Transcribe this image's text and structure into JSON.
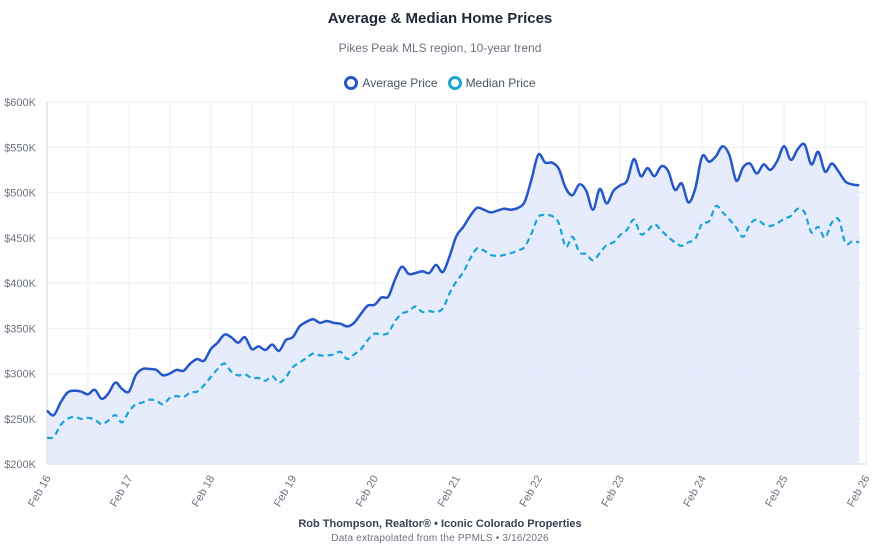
{
  "title": "Average & Median Home Prices",
  "subtitle": "Pikes Peak MLS region, 10-year trend",
  "footer": {
    "line1": "Rob Thompson, Realtor® • Iconic Colorado Properties",
    "line2": "Data extrapolated from the PPMLS • 3/16/2026"
  },
  "colors": {
    "average": "#2457c9",
    "median": "#1aa3d6",
    "fill": "#e3e9fb",
    "grid": "#eceff3"
  },
  "chart_data": {
    "type": "line",
    "title": "Average & Median Home Prices",
    "subtitle": "Pikes Peak MLS region, 10-year trend",
    "ylim": [
      200000,
      600000
    ],
    "y_ticks": [
      200000,
      250000,
      300000,
      350000,
      400000,
      450000,
      500000,
      550000,
      600000
    ],
    "y_tick_labels": [
      "$200K",
      "$250K",
      "$300K",
      "$350K",
      "$400K",
      "$450K",
      "$500K",
      "$550K",
      "$600K"
    ],
    "x_tick_labels": [
      "Feb 16",
      "Feb 17",
      "Feb 18",
      "Feb 19",
      "Feb 20",
      "Feb 21",
      "Feb 22",
      "Feb 23",
      "Feb 24",
      "Feb 25",
      "Feb 26"
    ],
    "grid": true,
    "legend_position": "top-center",
    "series": [
      {
        "name": "Average Price",
        "style": "solid",
        "points": [
          [
            "2016-02",
            259
          ],
          [
            "2016-03",
            254
          ],
          [
            "2016-04",
            268
          ],
          [
            "2016-05",
            279
          ],
          [
            "2016-06",
            281
          ],
          [
            "2016-07",
            280
          ],
          [
            "2016-08",
            277
          ],
          [
            "2016-09",
            282
          ],
          [
            "2016-10",
            272
          ],
          [
            "2016-11",
            278
          ],
          [
            "2016-12",
            290
          ],
          [
            "2017-01",
            283
          ],
          [
            "2017-02",
            280
          ],
          [
            "2017-03",
            298
          ],
          [
            "2017-04",
            305
          ],
          [
            "2017-05",
            305
          ],
          [
            "2017-06",
            304
          ],
          [
            "2017-07",
            298
          ],
          [
            "2017-08",
            300
          ],
          [
            "2017-09",
            304
          ],
          [
            "2017-10",
            303
          ],
          [
            "2017-11",
            311
          ],
          [
            "2017-12",
            316
          ],
          [
            "2018-01",
            314
          ],
          [
            "2018-02",
            327
          ],
          [
            "2018-03",
            334
          ],
          [
            "2018-04",
            343
          ],
          [
            "2018-05",
            340
          ],
          [
            "2018-06",
            334
          ],
          [
            "2018-07",
            340
          ],
          [
            "2018-08",
            327
          ],
          [
            "2018-09",
            330
          ],
          [
            "2018-10",
            326
          ],
          [
            "2018-11",
            332
          ],
          [
            "2018-12",
            325
          ],
          [
            "2019-01",
            337
          ],
          [
            "2019-02",
            340
          ],
          [
            "2019-03",
            352
          ],
          [
            "2019-04",
            357
          ],
          [
            "2019-05",
            360
          ],
          [
            "2019-06",
            356
          ],
          [
            "2019-07",
            358
          ],
          [
            "2019-08",
            356
          ],
          [
            "2019-09",
            355
          ],
          [
            "2019-10",
            352
          ],
          [
            "2019-11",
            356
          ],
          [
            "2019-12",
            366
          ],
          [
            "2020-01",
            375
          ],
          [
            "2020-02",
            376
          ],
          [
            "2020-03",
            384
          ],
          [
            "2020-04",
            385
          ],
          [
            "2020-05",
            404
          ],
          [
            "2020-06",
            418
          ],
          [
            "2020-07",
            410
          ],
          [
            "2020-08",
            411
          ],
          [
            "2020-09",
            413
          ],
          [
            "2020-10",
            411
          ],
          [
            "2020-11",
            420
          ],
          [
            "2020-12",
            412
          ],
          [
            "2021-01",
            430
          ],
          [
            "2021-02",
            452
          ],
          [
            "2021-03",
            462
          ],
          [
            "2021-04",
            474
          ],
          [
            "2021-05",
            483
          ],
          [
            "2021-06",
            481
          ],
          [
            "2021-07",
            478
          ],
          [
            "2021-08",
            480
          ],
          [
            "2021-09",
            482
          ],
          [
            "2021-10",
            481
          ],
          [
            "2021-11",
            483
          ],
          [
            "2021-12",
            490
          ],
          [
            "2022-01",
            515
          ],
          [
            "2022-02",
            542
          ],
          [
            "2022-03",
            533
          ],
          [
            "2022-04",
            533
          ],
          [
            "2022-05",
            526
          ],
          [
            "2022-06",
            505
          ],
          [
            "2022-07",
            497
          ],
          [
            "2022-08",
            509
          ],
          [
            "2022-09",
            502
          ],
          [
            "2022-10",
            481
          ],
          [
            "2022-11",
            504
          ],
          [
            "2022-12",
            488
          ],
          [
            "2023-01",
            502
          ],
          [
            "2023-02",
            508
          ],
          [
            "2023-03",
            513
          ],
          [
            "2023-04",
            537
          ],
          [
            "2023-05",
            518
          ],
          [
            "2023-06",
            527
          ],
          [
            "2023-07",
            518
          ],
          [
            "2023-08",
            529
          ],
          [
            "2023-09",
            524
          ],
          [
            "2023-10",
            503
          ],
          [
            "2023-11",
            510
          ],
          [
            "2023-12",
            489
          ],
          [
            "2024-01",
            505
          ],
          [
            "2024-02",
            540
          ],
          [
            "2024-03",
            534
          ],
          [
            "2024-04",
            540
          ],
          [
            "2024-05",
            551
          ],
          [
            "2024-06",
            541
          ],
          [
            "2024-07",
            513
          ],
          [
            "2024-08",
            528
          ],
          [
            "2024-09",
            532
          ],
          [
            "2024-10",
            521
          ],
          [
            "2024-11",
            531
          ],
          [
            "2024-12",
            525
          ],
          [
            "2025-01",
            535
          ],
          [
            "2025-02",
            551
          ],
          [
            "2025-03",
            536
          ],
          [
            "2025-04",
            548
          ],
          [
            "2025-05",
            553
          ],
          [
            "2025-06",
            531
          ],
          [
            "2025-07",
            545
          ],
          [
            "2025-08",
            523
          ],
          [
            "2025-09",
            532
          ],
          [
            "2025-10",
            523
          ],
          [
            "2025-11",
            512
          ],
          [
            "2025-12",
            509
          ],
          [
            "2026-01",
            508
          ]
        ]
      },
      {
        "name": "Median Price",
        "style": "dashed",
        "points": [
          [
            "2016-02",
            229
          ],
          [
            "2016-03",
            230
          ],
          [
            "2016-04",
            243
          ],
          [
            "2016-05",
            250
          ],
          [
            "2016-06",
            252
          ],
          [
            "2016-07",
            250
          ],
          [
            "2016-08",
            251
          ],
          [
            "2016-09",
            249
          ],
          [
            "2016-10",
            244
          ],
          [
            "2016-11",
            248
          ],
          [
            "2016-12",
            254
          ],
          [
            "2017-01",
            246
          ],
          [
            "2017-02",
            258
          ],
          [
            "2017-03",
            266
          ],
          [
            "2017-04",
            268
          ],
          [
            "2017-05",
            271
          ],
          [
            "2017-06",
            270
          ],
          [
            "2017-07",
            266
          ],
          [
            "2017-08",
            273
          ],
          [
            "2017-09",
            275
          ],
          [
            "2017-10",
            274
          ],
          [
            "2017-11",
            279
          ],
          [
            "2017-12",
            280
          ],
          [
            "2018-01",
            287
          ],
          [
            "2018-02",
            296
          ],
          [
            "2018-03",
            305
          ],
          [
            "2018-04",
            311
          ],
          [
            "2018-05",
            302
          ],
          [
            "2018-06",
            298
          ],
          [
            "2018-07",
            299
          ],
          [
            "2018-08",
            295
          ],
          [
            "2018-09",
            295
          ],
          [
            "2018-10",
            292
          ],
          [
            "2018-11",
            297
          ],
          [
            "2018-12",
            290
          ],
          [
            "2019-01",
            296
          ],
          [
            "2019-02",
            307
          ],
          [
            "2019-03",
            312
          ],
          [
            "2019-04",
            317
          ],
          [
            "2019-05",
            322
          ],
          [
            "2019-06",
            320
          ],
          [
            "2019-07",
            320
          ],
          [
            "2019-08",
            321
          ],
          [
            "2019-09",
            324
          ],
          [
            "2019-10",
            316
          ],
          [
            "2019-11",
            321
          ],
          [
            "2019-12",
            327
          ],
          [
            "2020-01",
            337
          ],
          [
            "2020-02",
            344
          ],
          [
            "2020-03",
            343
          ],
          [
            "2020-04",
            345
          ],
          [
            "2020-05",
            358
          ],
          [
            "2020-06",
            366
          ],
          [
            "2020-07",
            369
          ],
          [
            "2020-08",
            374
          ],
          [
            "2020-09",
            368
          ],
          [
            "2020-10",
            369
          ],
          [
            "2020-11",
            368
          ],
          [
            "2020-12",
            372
          ],
          [
            "2021-01",
            389
          ],
          [
            "2021-02",
            402
          ],
          [
            "2021-03",
            412
          ],
          [
            "2021-04",
            427
          ],
          [
            "2021-05",
            438
          ],
          [
            "2021-06",
            436
          ],
          [
            "2021-07",
            431
          ],
          [
            "2021-08",
            430
          ],
          [
            "2021-09",
            431
          ],
          [
            "2021-10",
            433
          ],
          [
            "2021-11",
            436
          ],
          [
            "2021-12",
            440
          ],
          [
            "2022-01",
            455
          ],
          [
            "2022-02",
            473
          ],
          [
            "2022-03",
            475
          ],
          [
            "2022-04",
            474
          ],
          [
            "2022-05",
            466
          ],
          [
            "2022-06",
            440
          ],
          [
            "2022-07",
            451
          ],
          [
            "2022-08",
            434
          ],
          [
            "2022-09",
            432
          ],
          [
            "2022-10",
            425
          ],
          [
            "2022-11",
            433
          ],
          [
            "2022-12",
            442
          ],
          [
            "2023-01",
            445
          ],
          [
            "2023-02",
            453
          ],
          [
            "2023-03",
            459
          ],
          [
            "2023-04",
            470
          ],
          [
            "2023-05",
            454
          ],
          [
            "2023-06",
            458
          ],
          [
            "2023-07",
            465
          ],
          [
            "2023-08",
            458
          ],
          [
            "2023-09",
            451
          ],
          [
            "2023-10",
            445
          ],
          [
            "2023-11",
            441
          ],
          [
            "2023-12",
            445
          ],
          [
            "2024-01",
            449
          ],
          [
            "2024-02",
            466
          ],
          [
            "2024-03",
            468
          ],
          [
            "2024-04",
            485
          ],
          [
            "2024-05",
            478
          ],
          [
            "2024-06",
            470
          ],
          [
            "2024-07",
            461
          ],
          [
            "2024-08",
            451
          ],
          [
            "2024-09",
            465
          ],
          [
            "2024-10",
            470
          ],
          [
            "2024-11",
            465
          ],
          [
            "2024-12",
            463
          ],
          [
            "2025-01",
            466
          ],
          [
            "2025-02",
            471
          ],
          [
            "2025-03",
            474
          ],
          [
            "2025-04",
            482
          ],
          [
            "2025-05",
            478
          ],
          [
            "2025-06",
            456
          ],
          [
            "2025-07",
            462
          ],
          [
            "2025-08",
            450
          ],
          [
            "2025-09",
            467
          ],
          [
            "2025-10",
            470
          ],
          [
            "2025-11",
            444
          ],
          [
            "2025-12",
            446
          ],
          [
            "2026-01",
            445
          ]
        ],
        "value_unit": "thousand USD"
      }
    ],
    "value_unit": "thousand USD"
  }
}
